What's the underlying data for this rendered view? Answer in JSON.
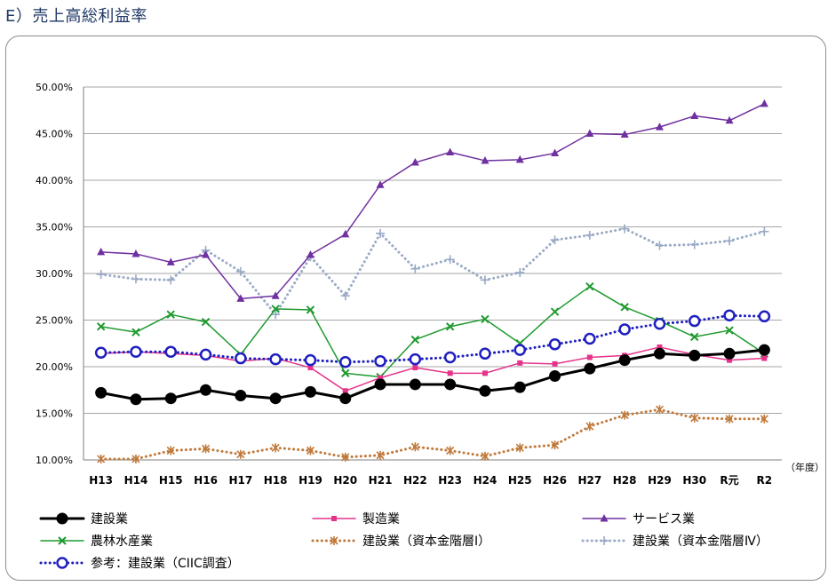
{
  "heading": "E）売上高総利益率",
  "chart_data": {
    "type": "line",
    "x_unit_label": "（年度）",
    "categories": [
      "H13",
      "H14",
      "H15",
      "H16",
      "H17",
      "H18",
      "H19",
      "H20",
      "H21",
      "H22",
      "H23",
      "H24",
      "H25",
      "H26",
      "H27",
      "H28",
      "H29",
      "H30",
      "R元",
      "R2"
    ],
    "ylim": [
      10,
      50
    ],
    "yticks": [
      "10.00%",
      "15.00%",
      "20.00%",
      "25.00%",
      "30.00%",
      "35.00%",
      "40.00%",
      "45.00%",
      "50.00%"
    ],
    "grid": true,
    "legend_position": "bottom",
    "series": [
      {
        "name": "建設業",
        "color": "#000000",
        "style": "solid",
        "width": 3,
        "marker": "circle-filled",
        "values": [
          17.2,
          16.5,
          16.6,
          17.5,
          16.9,
          16.6,
          17.3,
          16.6,
          18.1,
          18.1,
          18.1,
          17.4,
          17.8,
          19.0,
          19.8,
          20.7,
          21.4,
          21.2,
          21.4,
          21.8
        ]
      },
      {
        "name": "製造業",
        "color": "#e6338a",
        "style": "solid",
        "width": 1.5,
        "marker": "square",
        "values": [
          21.4,
          21.6,
          21.4,
          21.2,
          20.6,
          20.9,
          19.9,
          17.4,
          18.8,
          19.9,
          19.3,
          19.3,
          20.4,
          20.3,
          21.0,
          21.2,
          22.1,
          21.3,
          20.7,
          20.9
        ]
      },
      {
        "name": "サービス業",
        "color": "#7030a0",
        "style": "solid",
        "width": 1.5,
        "marker": "triangle",
        "values": [
          32.3,
          32.1,
          31.2,
          32.0,
          27.3,
          27.6,
          32.0,
          34.2,
          39.5,
          41.9,
          43.0,
          42.1,
          42.2,
          42.9,
          45.0,
          44.9,
          45.7,
          46.9,
          46.4,
          48.2
        ]
      },
      {
        "name": "農林水産業",
        "color": "#1e9a2e",
        "style": "solid",
        "width": 1.5,
        "marker": "x",
        "values": [
          24.3,
          23.7,
          25.6,
          24.8,
          21.3,
          26.2,
          26.1,
          19.3,
          18.9,
          22.9,
          24.3,
          25.1,
          22.5,
          25.9,
          28.6,
          26.4,
          24.9,
          23.2,
          23.9,
          21.4
        ]
      },
      {
        "name": "建設業（資本金階層Ⅰ）",
        "color": "#c0793a",
        "style": "dotted",
        "width": 3,
        "marker": "asterisk",
        "values": [
          10.1,
          10.1,
          11.0,
          11.2,
          10.6,
          11.3,
          11.0,
          10.3,
          10.5,
          11.4,
          11.0,
          10.4,
          11.3,
          11.6,
          13.6,
          14.8,
          15.4,
          14.5,
          14.4,
          14.4
        ]
      },
      {
        "name": "建設業（資本金階層Ⅳ）",
        "color": "#9aaac6",
        "style": "dotted",
        "width": 3,
        "marker": "plus",
        "values": [
          29.9,
          29.4,
          29.3,
          32.5,
          30.2,
          25.6,
          31.8,
          27.6,
          34.3,
          30.5,
          31.5,
          29.3,
          30.1,
          33.6,
          34.1,
          34.8,
          33.0,
          33.1,
          33.5,
          34.5
        ]
      },
      {
        "name": "参考：建設業（CIIC調査）",
        "color": "#1f1fbf",
        "style": "dotted",
        "width": 3,
        "marker": "ring",
        "values": [
          21.5,
          21.6,
          21.6,
          21.3,
          20.9,
          20.8,
          20.7,
          20.5,
          20.6,
          20.8,
          21.0,
          21.4,
          21.8,
          22.4,
          23.0,
          24.0,
          24.6,
          24.9,
          25.5,
          25.4
        ]
      }
    ]
  }
}
